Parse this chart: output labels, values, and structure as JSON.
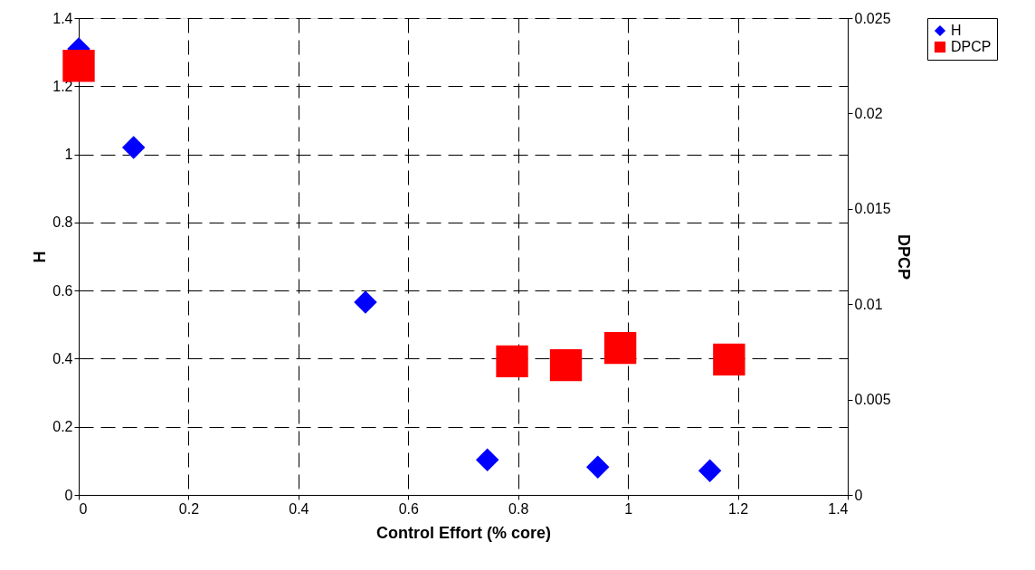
{
  "chart_data": {
    "type": "scatter",
    "xlabel": "Control Effort (% core)",
    "ylabel": "H",
    "y2label": "DPCP",
    "xlim": [
      0,
      1.4
    ],
    "xticks": [
      0,
      0.2,
      0.4,
      0.6,
      0.8,
      1,
      1.2,
      1.4
    ],
    "ylim": [
      0,
      1.4
    ],
    "yticks": [
      0,
      0.2,
      0.4,
      0.6,
      0.8,
      1,
      1.2,
      1.4
    ],
    "y2lim": [
      0,
      0.025
    ],
    "y2ticks": [
      0,
      0.005,
      0.01,
      0.015,
      0.02,
      0.025
    ],
    "grid": true,
    "legend": "right",
    "series": [
      {
        "name": "H",
        "color": "#0000ff",
        "marker": "diamond",
        "x": [
          0,
          0.1,
          0.522,
          0.744,
          0.945,
          1.149
        ],
        "values": [
          1.31,
          1.02,
          0.566,
          0.103,
          0.082,
          0.071
        ]
      },
      {
        "name": "DPCP",
        "color": "#ff0000",
        "marker": "square",
        "axis": "y2",
        "x": [
          0,
          0.789,
          0.887,
          0.986,
          1.184
        ],
        "values": [
          0.0225,
          0.007,
          0.0068,
          0.0077,
          0.0071
        ]
      }
    ]
  }
}
